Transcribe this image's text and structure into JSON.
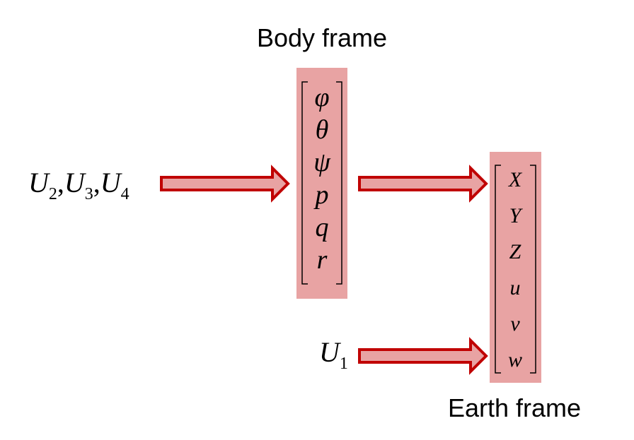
{
  "colors": {
    "box_fill": "#e8a3a3",
    "arrow_fill": "#e8a3a3",
    "arrow_stroke": "#c00000",
    "text": "#000000"
  },
  "labels": {
    "body_frame": "Body frame",
    "earth_frame": "Earth frame"
  },
  "inputs": {
    "attitude": {
      "base": "U",
      "terms": [
        "2",
        "3",
        "4"
      ],
      "separator": ","
    },
    "thrust": {
      "base": "U",
      "sub": "1"
    }
  },
  "body_vector": [
    "φ",
    "θ",
    "ψ",
    "p",
    "q",
    "r"
  ],
  "earth_vector": [
    "X",
    "Y",
    "Z",
    "u",
    "v",
    "w"
  ]
}
